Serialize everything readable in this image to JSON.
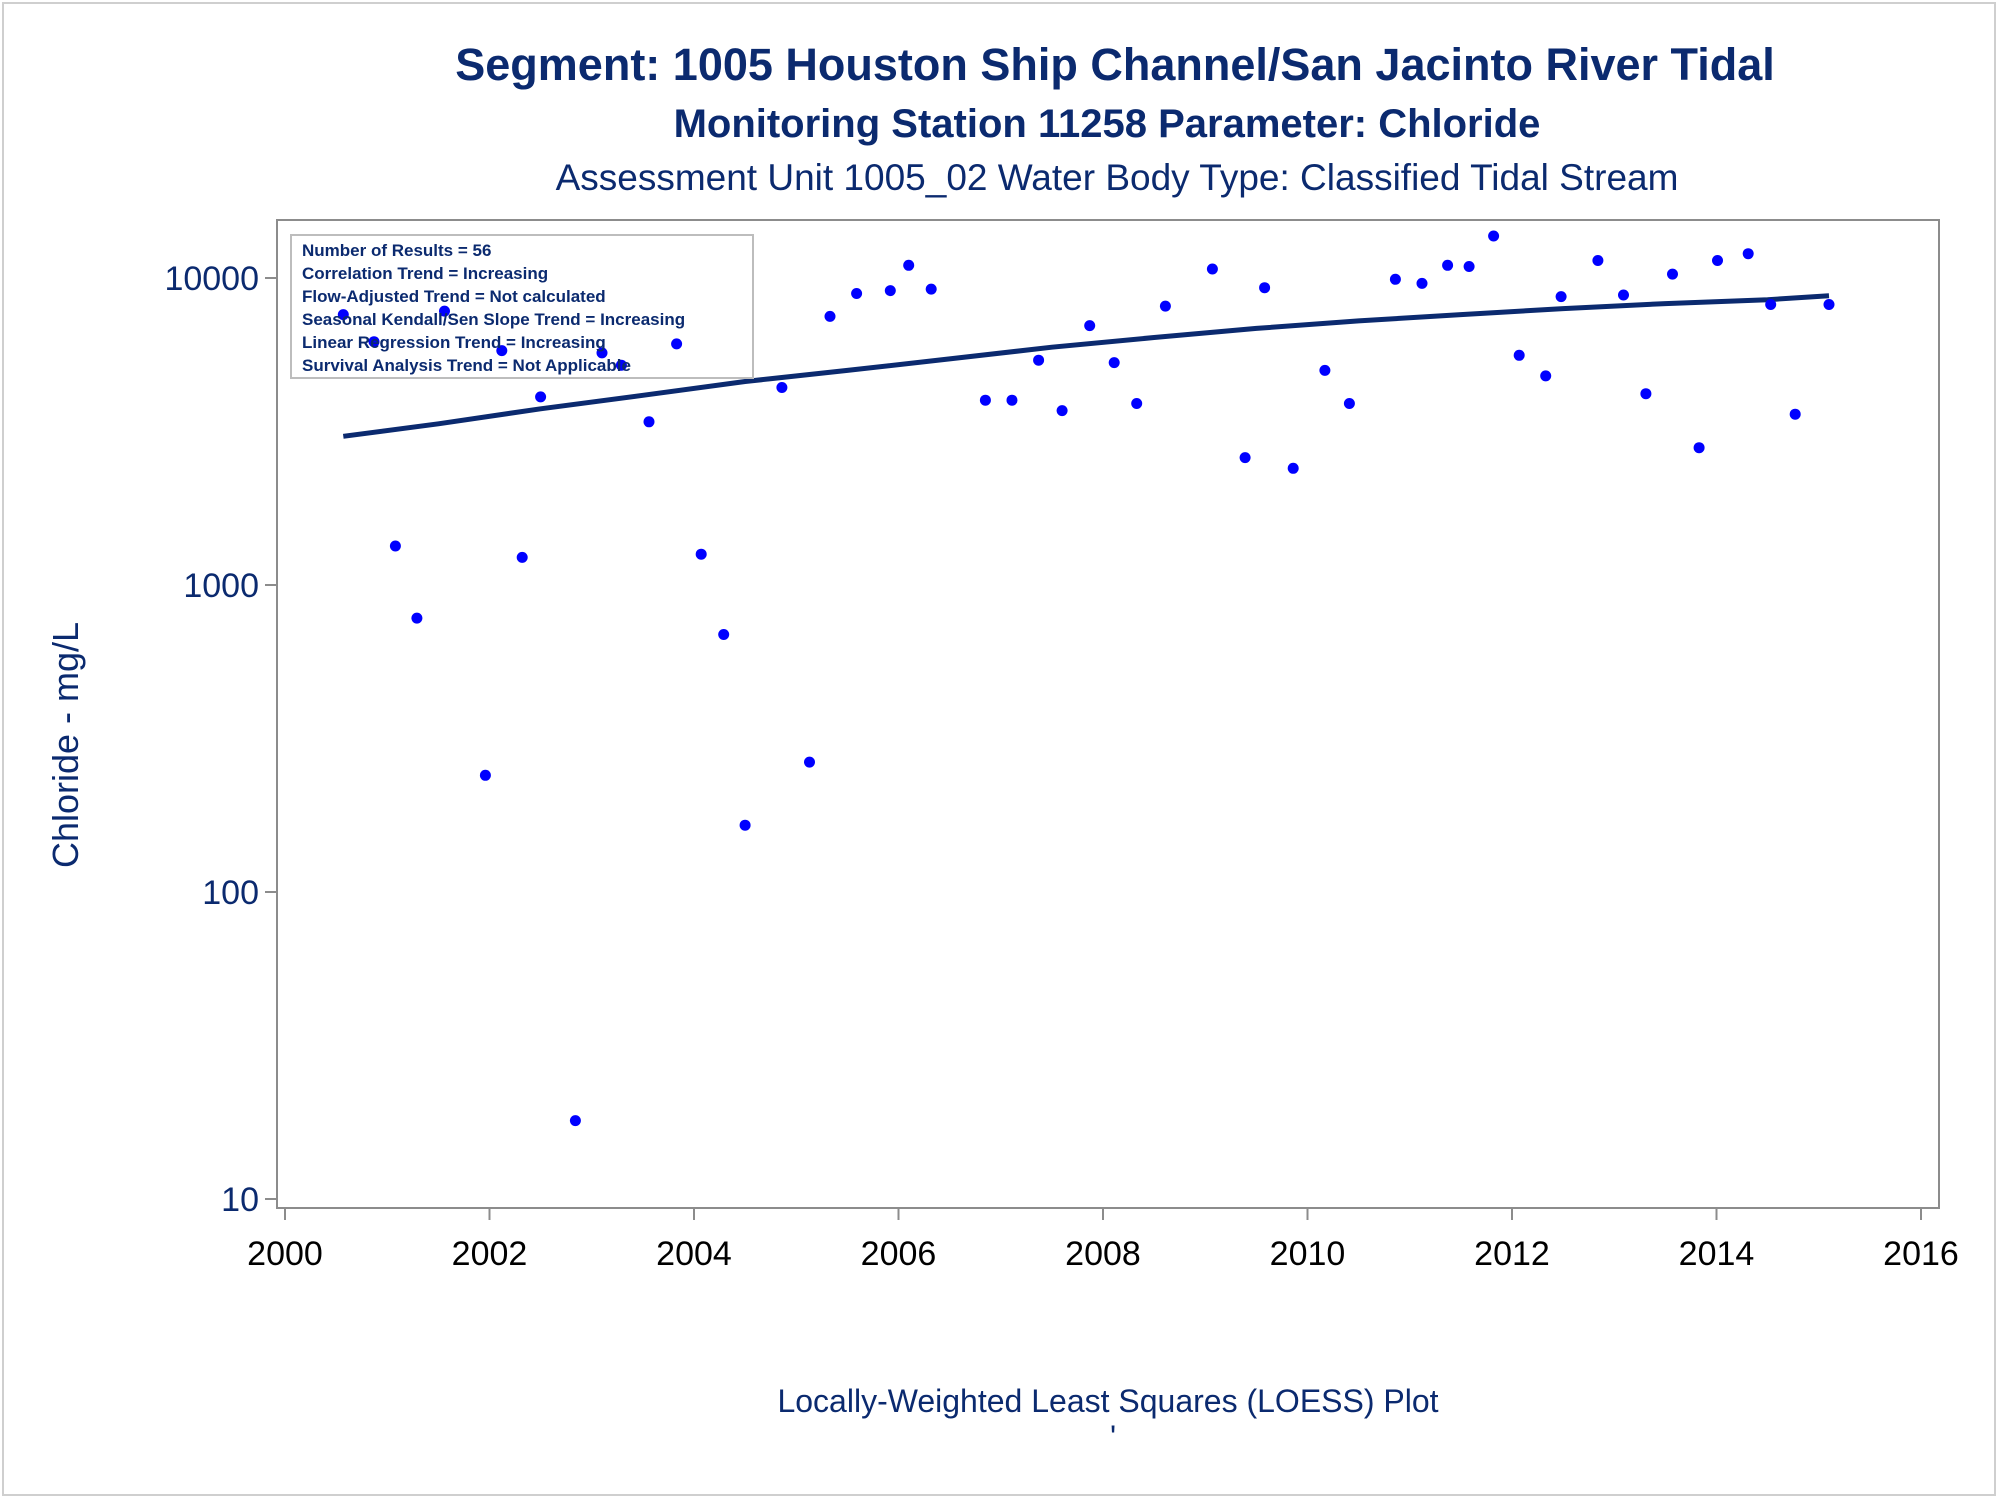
{
  "chart_data": {
    "type": "scatter",
    "title": "Segment: 1005  Houston Ship Channel/San Jacinto River Tidal",
    "subtitle": "Monitoring Station 11258 Parameter: Chloride",
    "subtitle2": "Assessment Unit 1005_02   Water Body Type: Classified Tidal Stream",
    "xlabel": "",
    "ylabel": "Chloride - mg/L",
    "footnote": "Locally-Weighted Least Squares (LOESS) Plot",
    "footnote_mark": "'",
    "x_axis_kind": "date (decimal year)",
    "xlim": [
      2000,
      2016
    ],
    "x_ticks": [
      "2000",
      "2002",
      "2004",
      "2006",
      "2008",
      "2010",
      "2012",
      "2014",
      "2016"
    ],
    "y_scale": "log",
    "ylim": [
      10,
      15000
    ],
    "y_ticks": [
      "10",
      "100",
      "1000",
      "10000"
    ],
    "grid": false,
    "legend_position": "top-left inset",
    "inset_lines": [
      "Number of Results = 56",
      "Correlation Trend = Increasing",
      "Flow-Adjusted Trend = Not calculated",
      "Seasonal Kendall/Sen Slope Trend = Increasing",
      "Linear Regression Trend = Increasing",
      "Survival Analysis Trend = Not Applicable"
    ],
    "series": [
      {
        "type": "scatter",
        "color": "#0000ff",
        "points": [
          [
            2000.57,
            7600
          ],
          [
            2000.87,
            6200
          ],
          [
            2001.08,
            1340
          ],
          [
            2001.29,
            780
          ],
          [
            2001.56,
            7800
          ],
          [
            2001.96,
            240
          ],
          [
            2002.12,
            5800
          ],
          [
            2002.32,
            1230
          ],
          [
            2002.5,
            4100
          ],
          [
            2002.84,
            18
          ],
          [
            2003.1,
            5700
          ],
          [
            2003.29,
            5200
          ],
          [
            2003.56,
            3400
          ],
          [
            2003.83,
            6100
          ],
          [
            2004.07,
            1260
          ],
          [
            2004.29,
            690
          ],
          [
            2004.5,
            165
          ],
          [
            2004.86,
            4400
          ],
          [
            2005.13,
            265
          ],
          [
            2005.33,
            7500
          ],
          [
            2005.59,
            8900
          ],
          [
            2005.92,
            9100
          ],
          [
            2006.1,
            11000
          ],
          [
            2006.32,
            9200
          ],
          [
            2006.85,
            4000
          ],
          [
            2007.11,
            4000
          ],
          [
            2007.37,
            5400
          ],
          [
            2007.6,
            3700
          ],
          [
            2007.87,
            7000
          ],
          [
            2008.11,
            5300
          ],
          [
            2008.33,
            3900
          ],
          [
            2008.61,
            8100
          ],
          [
            2009.07,
            10700
          ],
          [
            2009.39,
            2600
          ],
          [
            2009.58,
            9300
          ],
          [
            2009.86,
            2400
          ],
          [
            2010.17,
            5000
          ],
          [
            2010.41,
            3900
          ],
          [
            2010.86,
            9900
          ],
          [
            2011.12,
            9600
          ],
          [
            2011.37,
            11000
          ],
          [
            2011.58,
            10900
          ],
          [
            2011.82,
            13700
          ],
          [
            2012.07,
            5600
          ],
          [
            2012.33,
            4800
          ],
          [
            2012.48,
            8700
          ],
          [
            2012.84,
            11400
          ],
          [
            2013.09,
            8800
          ],
          [
            2013.31,
            4200
          ],
          [
            2013.57,
            10300
          ],
          [
            2013.83,
            2800
          ],
          [
            2014.01,
            11400
          ],
          [
            2014.31,
            12000
          ],
          [
            2014.53,
            8200
          ],
          [
            2014.77,
            3600
          ],
          [
            2015.1,
            8200
          ]
        ]
      },
      {
        "type": "line",
        "color": "#0b2a6f",
        "points": [
          [
            2000.57,
            3050
          ],
          [
            2001.5,
            3350
          ],
          [
            2002.5,
            3750
          ],
          [
            2003.5,
            4150
          ],
          [
            2004.5,
            4600
          ],
          [
            2005.5,
            5000
          ],
          [
            2006.5,
            5450
          ],
          [
            2007.5,
            5950
          ],
          [
            2008.5,
            6400
          ],
          [
            2009.5,
            6850
          ],
          [
            2010.5,
            7250
          ],
          [
            2011.5,
            7600
          ],
          [
            2012.5,
            7950
          ],
          [
            2013.5,
            8250
          ],
          [
            2014.5,
            8500
          ],
          [
            2015.1,
            8750
          ]
        ]
      }
    ]
  }
}
